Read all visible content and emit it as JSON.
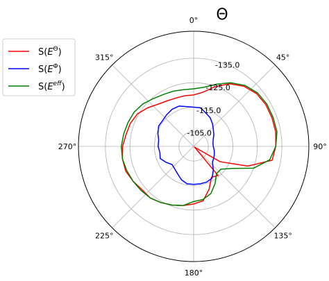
{
  "chart_data": {
    "type": "polar-line",
    "title": "Θ",
    "theta_direction": "clockwise",
    "theta_zero": "top",
    "r_ticks": [
      -105.0,
      -115.0,
      -125.0,
      -135.0
    ],
    "r_tick_labels": [
      "-105.0",
      "-115.0",
      "-125.0",
      "-135.0"
    ],
    "r_range": [
      -99,
      -146
    ],
    "theta_ticks": [
      0,
      45,
      90,
      135,
      180,
      225,
      270,
      315
    ],
    "theta_tick_labels": [
      "0°",
      "45°",
      "90°",
      "135°",
      "180°",
      "225°",
      "270°",
      "315°"
    ],
    "grid": true,
    "legend_position": "upper-left",
    "series": [
      {
        "name": "S(E^Θ)",
        "legend_base": "S(",
        "legend_var": "E",
        "legend_sup": "Θ",
        "legend_end": ")",
        "color": "#ff0000",
        "theta": [
          0,
          10,
          20,
          30,
          40,
          50,
          60,
          70,
          80,
          90,
          100,
          110,
          120,
          130,
          140,
          150,
          160,
          170,
          180,
          190,
          200,
          210,
          220,
          230,
          240,
          250,
          260,
          270,
          280,
          290,
          300,
          310,
          320,
          330,
          340,
          350
        ],
        "r": [
          -120.0,
          -121.5,
          -125.0,
          -128.5,
          -131.0,
          -132.5,
          -133.0,
          -133.0,
          -133.0,
          -132.5,
          -131.5,
          -122.5,
          -111.5,
          -99.5,
          -114.5,
          -113.5,
          -117.5,
          -121.5,
          -122.5,
          -123.5,
          -124.5,
          -125.5,
          -126.5,
          -126.5,
          -127.5,
          -128.5,
          -128.5,
          -128.0,
          -127.0,
          -126.5,
          -125.5,
          -123.5,
          -121.5,
          -120.5,
          -120.0,
          -120.0
        ]
      },
      {
        "name": "S(E^Φ)",
        "legend_base": "S(",
        "legend_var": "E",
        "legend_sup": "Φ",
        "legend_end": ")",
        "color": "#0000ff",
        "theta": [
          0,
          10,
          20,
          30,
          40,
          50,
          60,
          70,
          80,
          90,
          100,
          110,
          120,
          130,
          140,
          150,
          160,
          170,
          180,
          190,
          200,
          210,
          220,
          230,
          240,
          250,
          260,
          270,
          280,
          290,
          300,
          310,
          320,
          330,
          340,
          350
        ],
        "r": [
          -115.0,
          -115.0,
          -113.5,
          -112.5,
          -111.0,
          -109.5,
          -108.5,
          -107.5,
          -107.0,
          -107.0,
          -107.5,
          -108.0,
          -108.5,
          -109.0,
          -111.5,
          -114.0,
          -114.5,
          -114.5,
          -114.5,
          -114.5,
          -113.5,
          -112.0,
          -111.0,
          -110.5,
          -112.0,
          -113.5,
          -113.0,
          -113.5,
          -113.5,
          -114.5,
          -115.5,
          -115.5,
          -116.0,
          -116.5,
          -116.5,
          -115.5
        ]
      },
      {
        "name": "S(E^eff)",
        "legend_base": "S(",
        "legend_var": "E",
        "legend_sup": "eff",
        "legend_end": ")",
        "color": "#008000",
        "theta": [
          0,
          10,
          20,
          30,
          40,
          50,
          60,
          70,
          80,
          90,
          100,
          110,
          120,
          130,
          140,
          150,
          160,
          170,
          180,
          190,
          200,
          210,
          220,
          230,
          240,
          250,
          260,
          270,
          280,
          290,
          300,
          310,
          320,
          330,
          340,
          350
        ],
        "r": [
          -122.5,
          -123.5,
          -126.0,
          -129.0,
          -131.5,
          -133.0,
          -133.5,
          -133.5,
          -133.5,
          -132.5,
          -130.5,
          -125.0,
          -117.0,
          -113.5,
          -113.5,
          -116.5,
          -119.5,
          -121.0,
          -121.5,
          -123.5,
          -124.5,
          -125.5,
          -126.5,
          -127.0,
          -127.5,
          -128.0,
          -128.5,
          -128.5,
          -128.0,
          -127.5,
          -127.0,
          -126.0,
          -124.5,
          -123.5,
          -123.0,
          -122.5
        ]
      }
    ]
  }
}
